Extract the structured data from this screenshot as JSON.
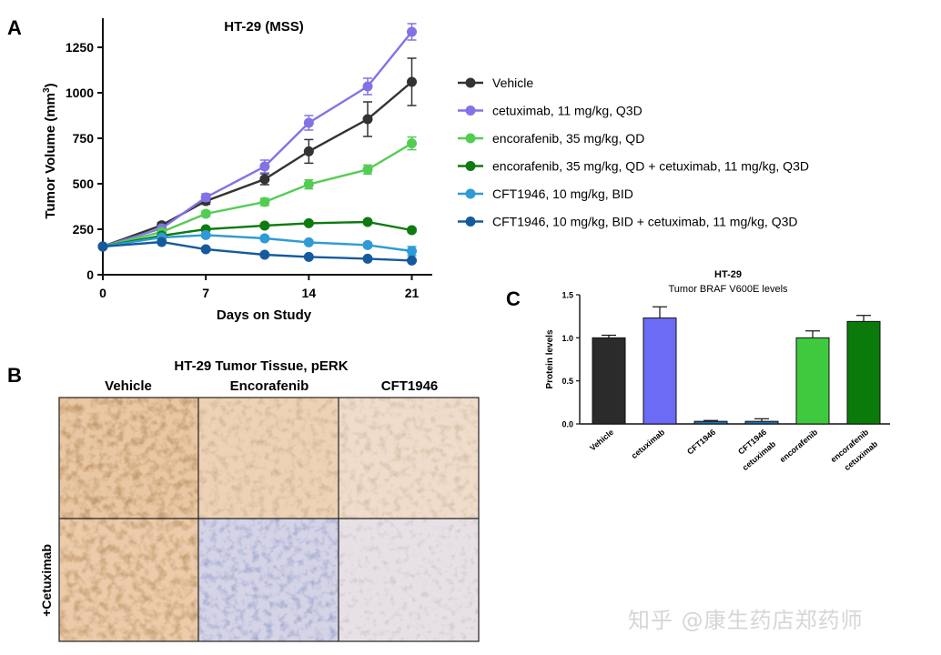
{
  "panels": {
    "a_letter": "A",
    "b_letter": "B",
    "c_letter": "C"
  },
  "chart_data": [
    {
      "type": "line",
      "title": "HT-29 (MSS)",
      "xlabel": "Days on Study",
      "ylabel_main": "Tumor Volume (mm",
      "ylabel_sup": "3",
      "ylabel_close": ")",
      "xlim": [
        0,
        22
      ],
      "ylim": [
        0,
        1400
      ],
      "xticks": [
        0,
        7,
        14,
        21
      ],
      "yticks": [
        0,
        250,
        500,
        750,
        1000,
        1250
      ],
      "legend_position": "right",
      "grid": false,
      "series": [
        {
          "name": "Vehicle",
          "color": "#333333",
          "x": [
            0,
            4,
            7,
            11,
            14,
            18,
            21
          ],
          "y": [
            155,
            272,
            405,
            525,
            678,
            855,
            1060
          ],
          "err": [
            0,
            15,
            18,
            30,
            65,
            95,
            130
          ]
        },
        {
          "name": "cetuximab, 11 mg/kg, Q3D",
          "color": "#8173e6",
          "x": [
            0,
            4,
            7,
            11,
            14,
            18,
            21
          ],
          "y": [
            155,
            255,
            425,
            595,
            835,
            1035,
            1335
          ],
          "err": [
            0,
            12,
            20,
            35,
            40,
            45,
            45
          ]
        },
        {
          "name": "encorafenib, 35 mg/kg, QD",
          "color": "#54cc54",
          "x": [
            0,
            4,
            7,
            11,
            14,
            18,
            21
          ],
          "y": [
            155,
            235,
            335,
            400,
            497,
            578,
            722
          ],
          "err": [
            0,
            10,
            15,
            20,
            25,
            25,
            35
          ]
        },
        {
          "name": "encorafenib, 35 mg/kg, QD + cetuximab, 11 mg/kg, Q3D",
          "color": "#0f7a0f",
          "x": [
            0,
            4,
            7,
            11,
            14,
            18,
            21
          ],
          "y": [
            155,
            215,
            250,
            270,
            283,
            290,
            245
          ],
          "err": [
            0,
            8,
            8,
            10,
            10,
            10,
            12
          ]
        },
        {
          "name": "CFT1946, 10 mg/kg, BID",
          "color": "#2e9ad6",
          "x": [
            0,
            4,
            7,
            11,
            14,
            18,
            21
          ],
          "y": [
            155,
            205,
            218,
            200,
            178,
            163,
            130
          ],
          "err": [
            0,
            8,
            8,
            8,
            10,
            12,
            25
          ]
        },
        {
          "name": "CFT1946, 10 mg/kg, BID + cetuximab, 11 mg/kg, Q3D",
          "color": "#165a9e",
          "x": [
            0,
            4,
            7,
            11,
            14,
            18,
            21
          ],
          "y": [
            155,
            180,
            140,
            110,
            98,
            88,
            78
          ],
          "err": [
            0,
            8,
            8,
            6,
            6,
            6,
            6
          ]
        }
      ]
    },
    {
      "type": "bar",
      "title": "HT-29",
      "subtitle": "Tumor BRAF V600E levels",
      "ylabel": "Protein levels",
      "xlabel": "",
      "ylim": [
        0,
        1.5
      ],
      "yticks": [
        "0.0",
        "0.5",
        "1.0",
        "1.5"
      ],
      "categories": [
        {
          "line1": "Vehicle",
          "line2": ""
        },
        {
          "line1": "cetuximab",
          "line2": ""
        },
        {
          "line1": "CFT1946",
          "line2": ""
        },
        {
          "line1": "CFT1946",
          "line2": "cetuximab"
        },
        {
          "line1": "encorafenib",
          "line2": ""
        },
        {
          "line1": "encorafenib",
          "line2": "cetuximab"
        }
      ],
      "values": [
        1.0,
        1.23,
        0.03,
        0.03,
        1.0,
        1.19
      ],
      "errors": [
        0.03,
        0.13,
        0.01,
        0.03,
        0.08,
        0.07
      ],
      "colors": [
        "#2b2b2b",
        "#6b6bf5",
        "#1f6fb0",
        "#1f6fb0",
        "#3ec93e",
        "#0a7a0a"
      ]
    }
  ],
  "histology": {
    "title": "HT-29 Tumor Tissue, pERK",
    "columns": [
      "Vehicle",
      "Encorafenib",
      "CFT1946"
    ],
    "row_label": "+Cetuximab"
  },
  "watermark": "知乎 @康生药店郑药师"
}
